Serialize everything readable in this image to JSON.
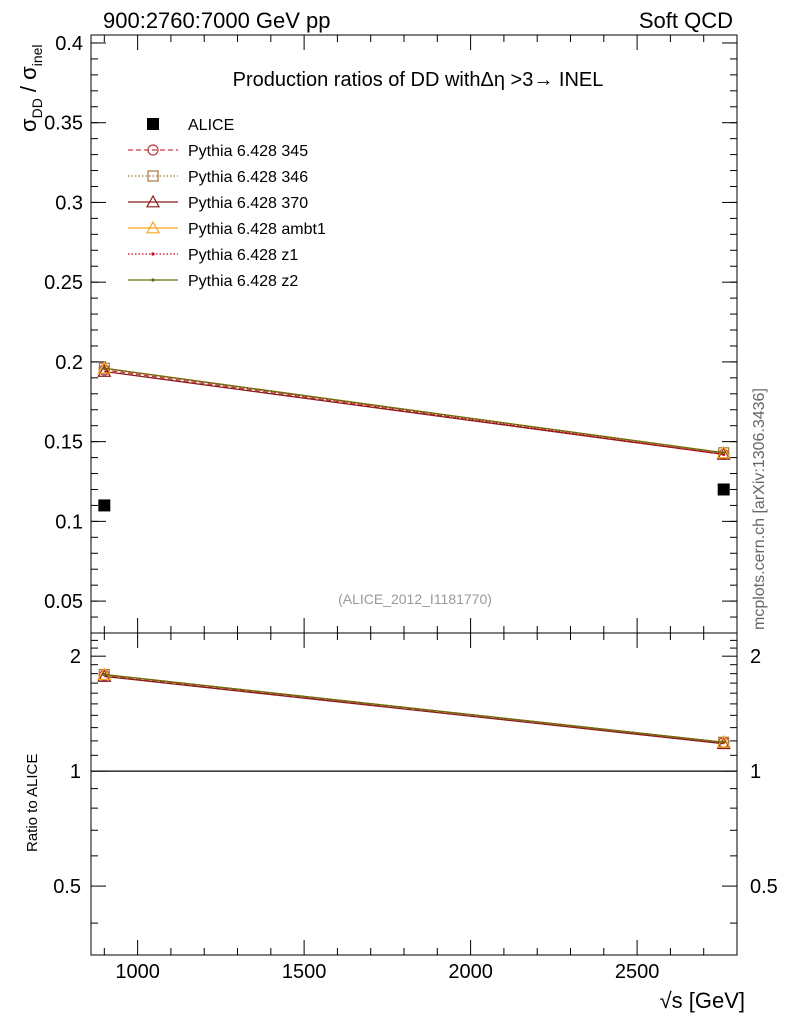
{
  "header": {
    "left": "900:2760:7000 GeV pp",
    "right": "Soft QCD"
  },
  "side_label": "mcplots.cern.ch [arXiv:1306.3436]",
  "chart_data": [
    {
      "type": "line",
      "panel": "main",
      "title": "Production ratios of DD withΔη >3→ INEL",
      "ylabel_parts": {
        "sigma1": "σ",
        "sub1": "DD",
        "slash": " / ",
        "sigma2": "σ",
        "sub2": "inel"
      },
      "analysis_id": "(ALICE_2012_I1181770)",
      "x": [
        900,
        2760
      ],
      "xlim": [
        860,
        2800
      ],
      "ylim": [
        0.03,
        0.405
      ],
      "yticks": [
        0.05,
        0.1,
        0.15,
        0.2,
        0.25,
        0.3,
        0.35,
        0.4
      ],
      "ytick_labels": [
        "0.05",
        "0.1",
        "0.15",
        "0.2",
        "0.25",
        "0.3",
        "0.35",
        "0.4"
      ],
      "legend_position": "top-left",
      "series": [
        {
          "name": "ALICE",
          "values": [
            0.11,
            0.12
          ],
          "color": "#000000",
          "marker": "square-filled",
          "line": "none"
        },
        {
          "name": "Pythia 6.428 345",
          "values": [
            0.195,
            0.142
          ],
          "color": "#c0393f",
          "marker": "circle-open",
          "line": "dashed"
        },
        {
          "name": "Pythia 6.428 346",
          "values": [
            0.196,
            0.143
          ],
          "color": "#a07a3c",
          "marker": "square-open",
          "line": "dotted"
        },
        {
          "name": "Pythia 6.428 370",
          "values": [
            0.194,
            0.142
          ],
          "color": "#8b1a1a",
          "marker": "triangle-open",
          "line": "solid"
        },
        {
          "name": "Pythia 6.428 ambt1",
          "values": [
            0.196,
            0.143
          ],
          "color": "#f5a623",
          "marker": "triangle-open",
          "line": "solid"
        },
        {
          "name": "Pythia 6.428 z1",
          "values": [
            0.196,
            0.142
          ],
          "color": "#d0021b",
          "marker": "dot",
          "line": "dotted"
        },
        {
          "name": "Pythia 6.428 z2",
          "values": [
            0.196,
            0.143
          ],
          "color": "#6b6b10",
          "marker": "dot",
          "line": "solid"
        }
      ]
    },
    {
      "type": "line",
      "panel": "ratio",
      "ylabel": "Ratio to ALICE",
      "xlabel": "√s [GeV]",
      "x": [
        900,
        2760
      ],
      "xlim": [
        860,
        2800
      ],
      "ylim": [
        0.33,
        2.3
      ],
      "yscale": "log",
      "yticks": [
        0.5,
        1,
        2
      ],
      "ytick_labels": [
        "0.5",
        "1",
        "2"
      ],
      "xticks": [
        1000,
        1500,
        2000,
        2500
      ],
      "xtick_labels": [
        "1000",
        "1500",
        "2000",
        "2500"
      ],
      "reference_line": 1,
      "series": [
        {
          "name": "Pythia 6.428 345",
          "values": [
            1.78,
            1.19
          ]
        },
        {
          "name": "Pythia 6.428 346",
          "values": [
            1.79,
            1.19
          ]
        },
        {
          "name": "Pythia 6.428 370",
          "values": [
            1.77,
            1.18
          ]
        },
        {
          "name": "Pythia 6.428 ambt1",
          "values": [
            1.79,
            1.19
          ]
        },
        {
          "name": "Pythia 6.428 z1",
          "values": [
            1.79,
            1.19
          ]
        },
        {
          "name": "Pythia 6.428 z2",
          "values": [
            1.79,
            1.19
          ]
        }
      ]
    }
  ]
}
